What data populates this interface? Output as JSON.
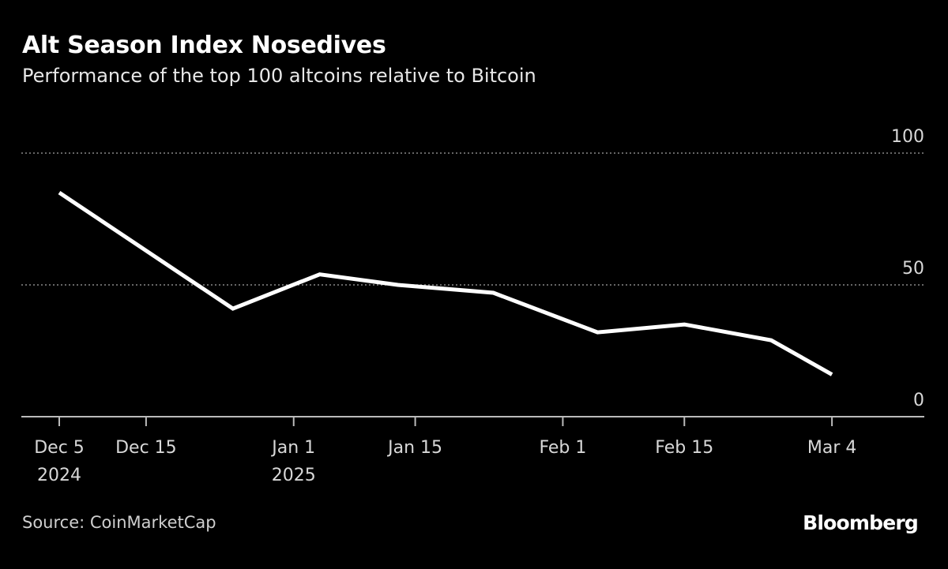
{
  "header": {
    "title": "Alt Season Index Nosedives",
    "subtitle": "Performance of the top 100 altcoins relative to Bitcoin"
  },
  "footer": {
    "source": "Source: CoinMarketCap",
    "logo": "Bloomberg"
  },
  "colors": {
    "background": "#000000",
    "line": "#ffffff",
    "grid": "#888888",
    "axis": "#bbbbbb"
  },
  "chart_data": {
    "type": "line",
    "title": "Alt Season Index Nosedives",
    "subtitle": "Performance of the top 100 altcoins relative to Bitcoin",
    "ylim": [
      0,
      100
    ],
    "y_ticks": [
      0,
      50,
      100
    ],
    "y_axis_position": "right",
    "grid": "horizontal dotted",
    "x_ticks": [
      {
        "date": "2024-12-05",
        "label": "Dec 5",
        "sublabel": "2024"
      },
      {
        "date": "2024-12-15",
        "label": "Dec 15",
        "sublabel": ""
      },
      {
        "date": "2025-01-01",
        "label": "Jan 1",
        "sublabel": "2025"
      },
      {
        "date": "2025-01-15",
        "label": "Jan 15",
        "sublabel": ""
      },
      {
        "date": "2025-02-01",
        "label": "Feb 1",
        "sublabel": ""
      },
      {
        "date": "2025-02-15",
        "label": "Feb 15",
        "sublabel": ""
      },
      {
        "date": "2025-03-04",
        "label": "Mar 4",
        "sublabel": ""
      }
    ],
    "xlim": [
      "2024-12-01",
      "2025-03-14"
    ],
    "series": [
      {
        "x": [
          "2024-12-05",
          "2024-12-25",
          "2025-01-04",
          "2025-01-13",
          "2025-01-24",
          "2025-02-05",
          "2025-02-15",
          "2025-02-25",
          "2025-03-04"
        ],
        "values": [
          85,
          41,
          54,
          50,
          47,
          32,
          35,
          29,
          16
        ]
      }
    ]
  }
}
